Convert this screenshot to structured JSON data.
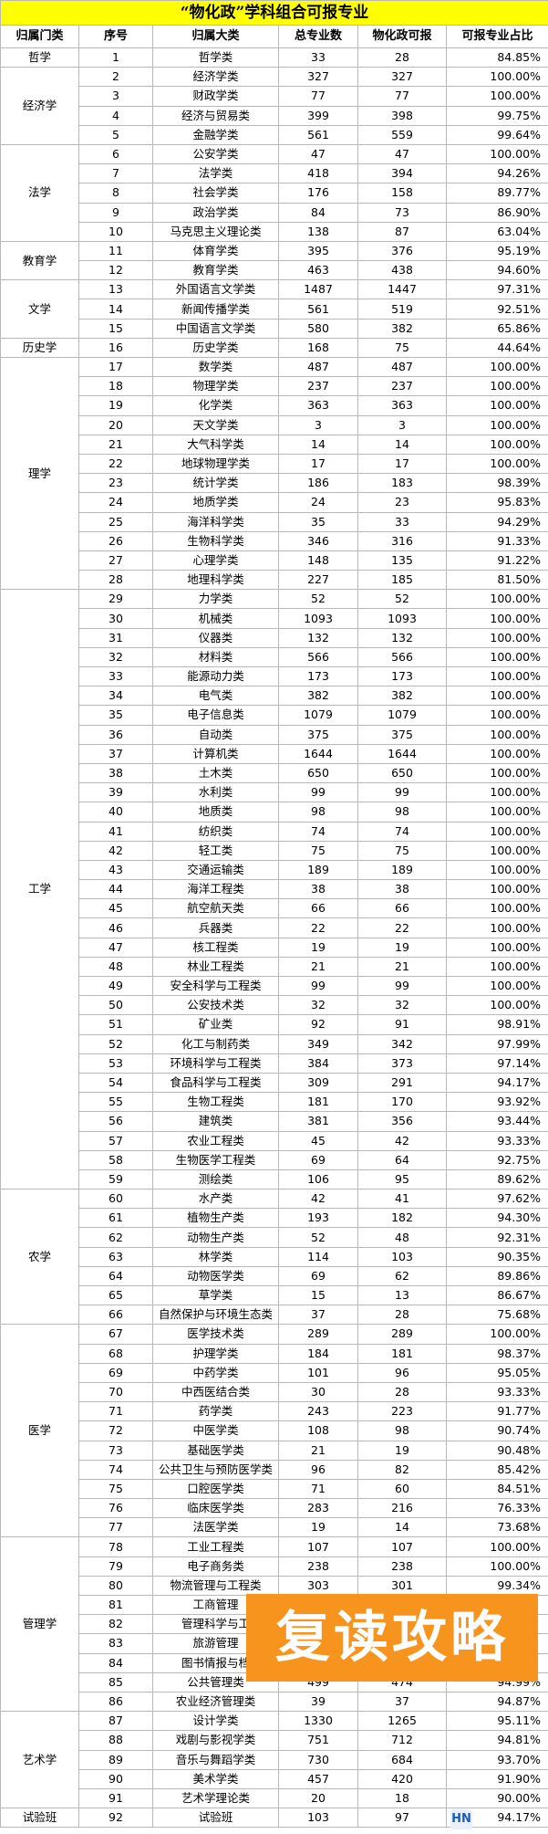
{
  "title": "“物化政”学科组合可报专业",
  "table": {
    "header": [
      "归属门类",
      "序号",
      "归属大类",
      "总专业数",
      "物化政可报",
      "可报专业占比"
    ],
    "groups": [
      {
        "category": "哲学",
        "rows": [
          [
            1,
            "哲学类",
            33,
            28,
            "84.85%"
          ]
        ]
      },
      {
        "category": "经济学",
        "rows": [
          [
            2,
            "经济学类",
            327,
            327,
            "100.00%"
          ],
          [
            3,
            "财政学类",
            77,
            77,
            "100.00%"
          ],
          [
            4,
            "经济与贸易类",
            399,
            398,
            "99.75%"
          ],
          [
            5,
            "金融学类",
            561,
            559,
            "99.64%"
          ]
        ]
      },
      {
        "category": "法学",
        "rows": [
          [
            6,
            "公安学类",
            47,
            47,
            "100.00%"
          ],
          [
            7,
            "法学类",
            418,
            394,
            "94.26%"
          ],
          [
            8,
            "社会学类",
            176,
            158,
            "89.77%"
          ],
          [
            9,
            "政治学类",
            84,
            73,
            "86.90%"
          ],
          [
            10,
            "马克思主义理论类",
            138,
            87,
            "63.04%"
          ]
        ]
      },
      {
        "category": "教育学",
        "rows": [
          [
            11,
            "体育学类",
            395,
            376,
            "95.19%"
          ],
          [
            12,
            "教育学类",
            463,
            438,
            "94.60%"
          ]
        ]
      },
      {
        "category": "文学",
        "rows": [
          [
            13,
            "外国语言文学类",
            1487,
            1447,
            "97.31%"
          ],
          [
            14,
            "新闻传播学类",
            561,
            519,
            "92.51%"
          ],
          [
            15,
            "中国语言文学类",
            580,
            382,
            "65.86%"
          ]
        ]
      },
      {
        "category": "历史学",
        "rows": [
          [
            16,
            "历史学类",
            168,
            75,
            "44.64%"
          ]
        ]
      },
      {
        "category": "理学",
        "rows": [
          [
            17,
            "数学类",
            487,
            487,
            "100.00%"
          ],
          [
            18,
            "物理学类",
            237,
            237,
            "100.00%"
          ],
          [
            19,
            "化学类",
            363,
            363,
            "100.00%"
          ],
          [
            20,
            "天文学类",
            3,
            3,
            "100.00%"
          ],
          [
            21,
            "大气科学类",
            14,
            14,
            "100.00%"
          ],
          [
            22,
            "地球物理学类",
            17,
            17,
            "100.00%"
          ],
          [
            23,
            "统计学类",
            186,
            183,
            "98.39%"
          ],
          [
            24,
            "地质学类",
            24,
            23,
            "95.83%"
          ],
          [
            25,
            "海洋科学类",
            35,
            33,
            "94.29%"
          ],
          [
            26,
            "生物科学类",
            346,
            316,
            "91.33%"
          ],
          [
            27,
            "心理学类",
            148,
            135,
            "91.22%"
          ],
          [
            28,
            "地理科学类",
            227,
            185,
            "81.50%"
          ]
        ]
      },
      {
        "category": "工学",
        "rows": [
          [
            29,
            "力学类",
            52,
            52,
            "100.00%"
          ],
          [
            30,
            "机械类",
            1093,
            1093,
            "100.00%"
          ],
          [
            31,
            "仪器类",
            132,
            132,
            "100.00%"
          ],
          [
            32,
            "材料类",
            566,
            566,
            "100.00%"
          ],
          [
            33,
            "能源动力类",
            173,
            173,
            "100.00%"
          ],
          [
            34,
            "电气类",
            382,
            382,
            "100.00%"
          ],
          [
            35,
            "电子信息类",
            1079,
            1079,
            "100.00%"
          ],
          [
            36,
            "自动类",
            375,
            375,
            "100.00%"
          ],
          [
            37,
            "计算机类",
            1644,
            1644,
            "100.00%"
          ],
          [
            38,
            "土木类",
            650,
            650,
            "100.00%"
          ],
          [
            39,
            "水利类",
            99,
            99,
            "100.00%"
          ],
          [
            40,
            "地质类",
            98,
            98,
            "100.00%"
          ],
          [
            41,
            "纺织类",
            74,
            74,
            "100.00%"
          ],
          [
            42,
            "轻工类",
            75,
            75,
            "100.00%"
          ],
          [
            43,
            "交通运输类",
            189,
            189,
            "100.00%"
          ],
          [
            44,
            "海洋工程类",
            38,
            38,
            "100.00%"
          ],
          [
            45,
            "航空航天类",
            66,
            66,
            "100.00%"
          ],
          [
            46,
            "兵器类",
            22,
            22,
            "100.00%"
          ],
          [
            47,
            "核工程类",
            19,
            19,
            "100.00%"
          ],
          [
            48,
            "林业工程类",
            21,
            21,
            "100.00%"
          ],
          [
            49,
            "安全科学与工程类",
            99,
            99,
            "100.00%"
          ],
          [
            50,
            "公安技术类",
            32,
            32,
            "100.00%"
          ],
          [
            51,
            "矿业类",
            92,
            91,
            "98.91%"
          ],
          [
            52,
            "化工与制药类",
            349,
            342,
            "97.99%"
          ],
          [
            53,
            "环境科学与工程类",
            384,
            373,
            "97.14%"
          ],
          [
            54,
            "食品科学与工程类",
            309,
            291,
            "94.17%"
          ],
          [
            55,
            "生物工程类",
            181,
            170,
            "93.92%"
          ],
          [
            56,
            "建筑类",
            381,
            356,
            "93.44%"
          ],
          [
            57,
            "农业工程类",
            45,
            42,
            "93.33%"
          ],
          [
            58,
            "生物医学工程类",
            69,
            64,
            "92.75%"
          ],
          [
            59,
            "测绘类",
            106,
            95,
            "89.62%"
          ]
        ]
      },
      {
        "category": "农学",
        "rows": [
          [
            60,
            "水产类",
            42,
            41,
            "97.62%"
          ],
          [
            61,
            "植物生产类",
            193,
            182,
            "94.30%"
          ],
          [
            62,
            "动物生产类",
            52,
            48,
            "92.31%"
          ],
          [
            63,
            "林学类",
            114,
            103,
            "90.35%"
          ],
          [
            64,
            "动物医学类",
            69,
            62,
            "89.86%"
          ],
          [
            65,
            "草学类",
            15,
            13,
            "86.67%"
          ],
          [
            66,
            "自然保护与环境生态类",
            37,
            28,
            "75.68%"
          ]
        ]
      },
      {
        "category": "医学",
        "rows": [
          [
            67,
            "医学技术类",
            289,
            289,
            "100.00%"
          ],
          [
            68,
            "护理学类",
            184,
            181,
            "98.37%"
          ],
          [
            69,
            "中药学类",
            101,
            96,
            "95.05%"
          ],
          [
            70,
            "中西医结合类",
            30,
            28,
            "93.33%"
          ],
          [
            71,
            "药学类",
            243,
            223,
            "91.77%"
          ],
          [
            72,
            "中医学类",
            108,
            98,
            "90.74%"
          ],
          [
            73,
            "基础医学类",
            21,
            19,
            "90.48%"
          ],
          [
            74,
            "公共卫生与预防医学类",
            96,
            82,
            "85.42%"
          ],
          [
            75,
            "口腔医学类",
            71,
            60,
            "84.51%"
          ],
          [
            76,
            "临床医学类",
            283,
            216,
            "76.33%"
          ],
          [
            77,
            "法医学类",
            19,
            14,
            "73.68%"
          ]
        ]
      },
      {
        "category": "管理学",
        "rows": [
          [
            78,
            "工业工程类",
            107,
            107,
            "100.00%"
          ],
          [
            79,
            "电子商务类",
            238,
            238,
            "100.00%"
          ],
          [
            80,
            "物流管理与工程类",
            303,
            301,
            "99.34%"
          ],
          [
            81,
            "工商管理"
          ],
          [
            82,
            "管理科学与工"
          ],
          [
            83,
            "旅游管理"
          ],
          [
            84,
            "图书情报与档"
          ],
          [
            85,
            "公共管理类",
            499,
            474,
            "94.99%"
          ],
          [
            86,
            "农业经济管理类",
            39,
            37,
            "94.87%"
          ]
        ]
      },
      {
        "category": "艺术学",
        "rows": [
          [
            87,
            "设计学类",
            1330,
            1265,
            "95.11%"
          ],
          [
            88,
            "戏剧与影视学类",
            751,
            712,
            "94.81%"
          ],
          [
            89,
            "音乐与舞蹈学类",
            730,
            684,
            "93.70%"
          ],
          [
            90,
            "美术学类",
            457,
            420,
            "91.90%"
          ],
          [
            91,
            "艺术学理论类",
            20,
            18,
            "90.00%"
          ]
        ]
      },
      {
        "category": "试验班",
        "rows": [
          [
            92,
            "试验班",
            103,
            97,
            "94.17%"
          ]
        ]
      }
    ]
  },
  "overlay": "复读攻略",
  "logo": "HN"
}
